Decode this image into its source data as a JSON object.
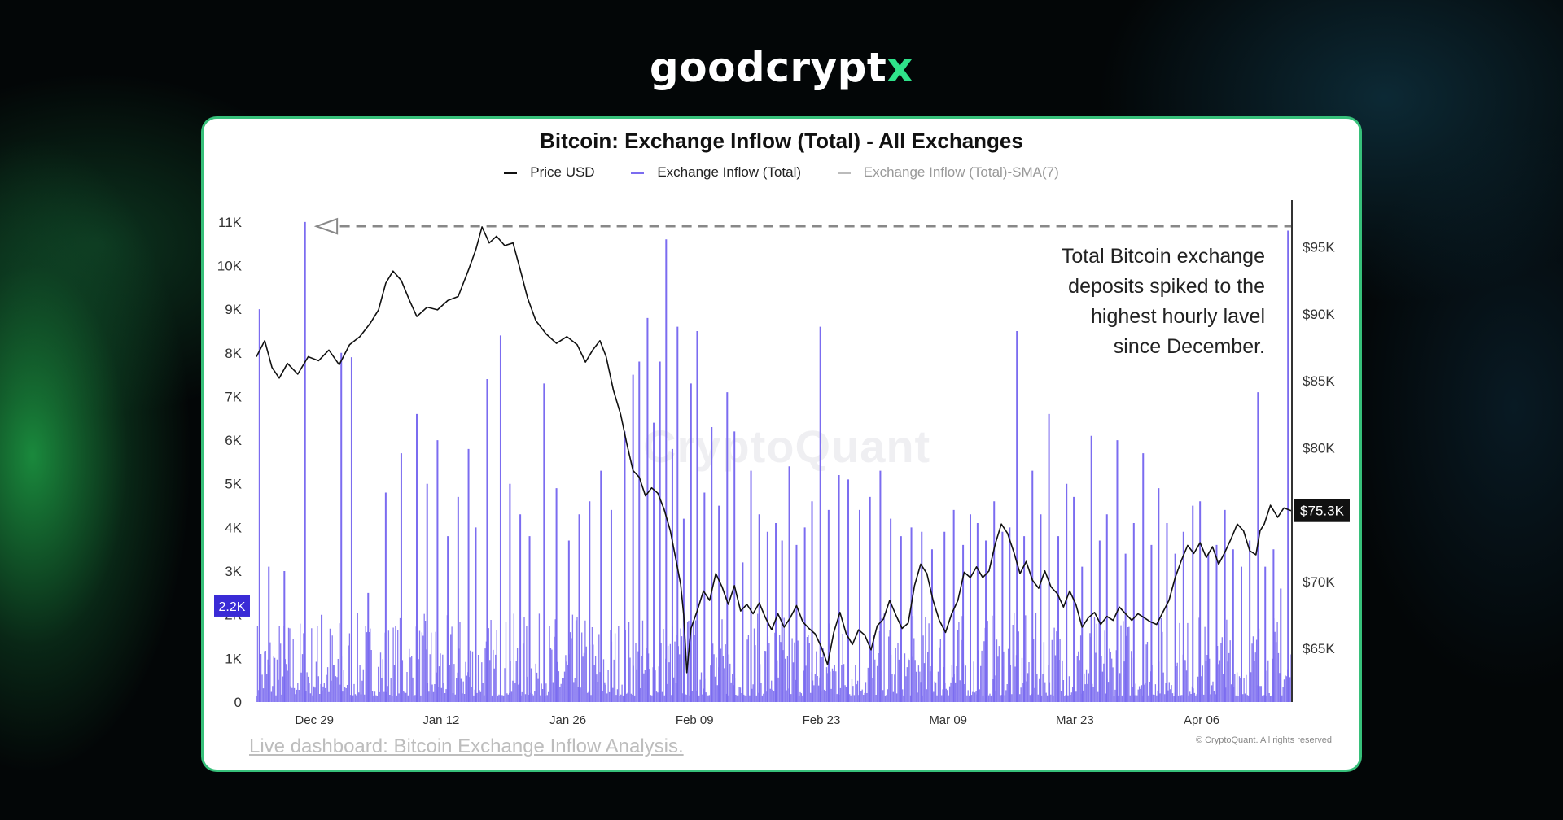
{
  "brand": {
    "logo_main": "goodcrypt",
    "logo_accent": "x"
  },
  "link": {
    "label": "Live dashboard: Bitcoin Exchange Inflow Analysis."
  },
  "footer": {
    "copyright": "© CryptoQuant. All rights reserved"
  },
  "watermark": "CryptoQuant",
  "colors": {
    "inflow": "#7b6cf0",
    "price": "#111111",
    "sma": "#aaaaaa",
    "card_border": "#37c07a",
    "badge_left": "#3a2bd6",
    "badge_right": "#111111"
  },
  "chart_data": {
    "type": "line",
    "title": "Bitcoin: Exchange Inflow (Total) - All Exchanges",
    "legend": [
      {
        "name": "Price USD",
        "color": "#111111",
        "active": true
      },
      {
        "name": "Exchange Inflow (Total)",
        "color": "#7b6cf0",
        "active": true
      },
      {
        "name": "Exchange Inflow (Total)-SMA(7)",
        "color": "#aaaaaa",
        "active": false
      }
    ],
    "legend_placement": "top-center",
    "y_left": {
      "ticks": [
        "0",
        "1K",
        "2K",
        "3K",
        "4K",
        "5K",
        "6K",
        "7K",
        "8K",
        "9K",
        "10K",
        "11K"
      ],
      "ylim": [
        0,
        11500
      ],
      "current_value_label": "2.2K",
      "current_value": 2200
    },
    "y_right": {
      "ticks": [
        "$65K",
        "$70K",
        "$75K",
        "$80K",
        "$85K",
        "$90K",
        "$95K"
      ],
      "tick_values": [
        65000,
        70000,
        75000,
        80000,
        85000,
        90000,
        95000
      ],
      "ylim": [
        61000,
        98500
      ],
      "current_value_label": "$75.3K",
      "current_value": 75300
    },
    "x_ticks": [
      "Dec 29",
      "Jan 12",
      "Jan 26",
      "Feb 09",
      "Feb 23",
      "Mar 09",
      "Mar 23",
      "Apr 06"
    ],
    "grid": false,
    "annotation": {
      "lines": [
        "Total Bitcoin exchange",
        "deposits spiked to the",
        "highest hourly lavel",
        "since December."
      ],
      "reference_level": 10900
    },
    "price_series": {
      "name": "Price USD",
      "points": [
        [
          0.0,
          86800
        ],
        [
          0.008,
          88000
        ],
        [
          0.015,
          86000
        ],
        [
          0.022,
          85200
        ],
        [
          0.03,
          86300
        ],
        [
          0.04,
          85500
        ],
        [
          0.05,
          86800
        ],
        [
          0.06,
          86500
        ],
        [
          0.07,
          87300
        ],
        [
          0.08,
          86200
        ],
        [
          0.09,
          87700
        ],
        [
          0.1,
          88300
        ],
        [
          0.11,
          89300
        ],
        [
          0.118,
          90300
        ],
        [
          0.125,
          92300
        ],
        [
          0.132,
          93200
        ],
        [
          0.14,
          92500
        ],
        [
          0.148,
          91000
        ],
        [
          0.155,
          89800
        ],
        [
          0.165,
          90500
        ],
        [
          0.175,
          90300
        ],
        [
          0.185,
          91000
        ],
        [
          0.195,
          91300
        ],
        [
          0.205,
          93300
        ],
        [
          0.212,
          94800
        ],
        [
          0.218,
          96500
        ],
        [
          0.225,
          95300
        ],
        [
          0.232,
          95800
        ],
        [
          0.24,
          95100
        ],
        [
          0.248,
          95300
        ],
        [
          0.256,
          93000
        ],
        [
          0.262,
          91200
        ],
        [
          0.27,
          89500
        ],
        [
          0.28,
          88500
        ],
        [
          0.29,
          87800
        ],
        [
          0.3,
          88300
        ],
        [
          0.31,
          87700
        ],
        [
          0.318,
          86400
        ],
        [
          0.325,
          87300
        ],
        [
          0.332,
          88000
        ],
        [
          0.338,
          86800
        ],
        [
          0.345,
          84300
        ],
        [
          0.352,
          82500
        ],
        [
          0.358,
          80300
        ],
        [
          0.364,
          78300
        ],
        [
          0.37,
          77800
        ],
        [
          0.376,
          76400
        ],
        [
          0.382,
          77000
        ],
        [
          0.388,
          76600
        ],
        [
          0.394,
          75400
        ],
        [
          0.4,
          73800
        ],
        [
          0.405,
          71800
        ],
        [
          0.41,
          69800
        ],
        [
          0.413,
          67500
        ],
        [
          0.416,
          63200
        ],
        [
          0.42,
          66500
        ],
        [
          0.426,
          67800
        ],
        [
          0.432,
          69300
        ],
        [
          0.438,
          68600
        ],
        [
          0.444,
          70600
        ],
        [
          0.45,
          69600
        ],
        [
          0.456,
          68300
        ],
        [
          0.462,
          69700
        ],
        [
          0.468,
          67800
        ],
        [
          0.474,
          68300
        ],
        [
          0.48,
          67600
        ],
        [
          0.486,
          68400
        ],
        [
          0.492,
          67300
        ],
        [
          0.498,
          66400
        ],
        [
          0.504,
          67600
        ],
        [
          0.51,
          66600
        ],
        [
          0.516,
          67300
        ],
        [
          0.522,
          68200
        ],
        [
          0.528,
          67000
        ],
        [
          0.534,
          66500
        ],
        [
          0.54,
          66100
        ],
        [
          0.546,
          65100
        ],
        [
          0.552,
          63800
        ],
        [
          0.558,
          66200
        ],
        [
          0.564,
          67700
        ],
        [
          0.57,
          66100
        ],
        [
          0.576,
          65300
        ],
        [
          0.582,
          66400
        ],
        [
          0.588,
          66000
        ],
        [
          0.594,
          64900
        ],
        [
          0.6,
          66700
        ],
        [
          0.606,
          67200
        ],
        [
          0.612,
          68600
        ],
        [
          0.618,
          67500
        ],
        [
          0.624,
          66500
        ],
        [
          0.63,
          66900
        ],
        [
          0.636,
          69700
        ],
        [
          0.642,
          71300
        ],
        [
          0.648,
          70600
        ],
        [
          0.654,
          68600
        ],
        [
          0.66,
          67100
        ],
        [
          0.666,
          66200
        ],
        [
          0.672,
          67600
        ],
        [
          0.678,
          68600
        ],
        [
          0.684,
          70700
        ],
        [
          0.69,
          70300
        ],
        [
          0.696,
          71100
        ],
        [
          0.702,
          70300
        ],
        [
          0.708,
          70800
        ],
        [
          0.714,
          72800
        ],
        [
          0.72,
          74300
        ],
        [
          0.726,
          73600
        ],
        [
          0.732,
          72200
        ],
        [
          0.738,
          70600
        ],
        [
          0.744,
          71500
        ],
        [
          0.75,
          70100
        ],
        [
          0.756,
          69500
        ],
        [
          0.762,
          70800
        ],
        [
          0.768,
          69600
        ],
        [
          0.774,
          69100
        ],
        [
          0.78,
          68100
        ],
        [
          0.786,
          69300
        ],
        [
          0.792,
          68300
        ],
        [
          0.798,
          66600
        ],
        [
          0.804,
          67300
        ],
        [
          0.81,
          67700
        ],
        [
          0.816,
          66800
        ],
        [
          0.822,
          67400
        ],
        [
          0.828,
          67100
        ],
        [
          0.834,
          68100
        ],
        [
          0.84,
          67600
        ],
        [
          0.846,
          67100
        ],
        [
          0.852,
          67600
        ],
        [
          0.858,
          67300
        ],
        [
          0.864,
          67000
        ],
        [
          0.87,
          66800
        ],
        [
          0.876,
          67700
        ],
        [
          0.882,
          68600
        ],
        [
          0.888,
          70300
        ],
        [
          0.894,
          71600
        ],
        [
          0.9,
          72700
        ],
        [
          0.906,
          72100
        ],
        [
          0.912,
          72900
        ],
        [
          0.918,
          71800
        ],
        [
          0.924,
          72600
        ],
        [
          0.93,
          71300
        ],
        [
          0.936,
          72200
        ],
        [
          0.942,
          73200
        ],
        [
          0.948,
          74300
        ],
        [
          0.954,
          73800
        ],
        [
          0.96,
          72300
        ],
        [
          0.966,
          72000
        ],
        [
          0.97,
          73800
        ],
        [
          0.974,
          74300
        ],
        [
          0.98,
          75700
        ],
        [
          0.987,
          74800
        ],
        [
          0.993,
          75500
        ],
        [
          1.0,
          75300
        ]
      ]
    },
    "inflow_spikes": {
      "name": "Exchange Inflow (Total)",
      "points": [
        [
          0.003,
          9000
        ],
        [
          0.012,
          3100
        ],
        [
          0.027,
          3000
        ],
        [
          0.047,
          11000
        ],
        [
          0.063,
          2000
        ],
        [
          0.082,
          8000
        ],
        [
          0.092,
          7900
        ],
        [
          0.108,
          2500
        ],
        [
          0.125,
          4800
        ],
        [
          0.14,
          5700
        ],
        [
          0.155,
          6600
        ],
        [
          0.165,
          5000
        ],
        [
          0.175,
          6000
        ],
        [
          0.185,
          3800
        ],
        [
          0.195,
          4700
        ],
        [
          0.205,
          5800
        ],
        [
          0.212,
          4000
        ],
        [
          0.223,
          7400
        ],
        [
          0.236,
          8400
        ],
        [
          0.245,
          5000
        ],
        [
          0.255,
          4300
        ],
        [
          0.264,
          3800
        ],
        [
          0.278,
          7300
        ],
        [
          0.29,
          4900
        ],
        [
          0.302,
          3700
        ],
        [
          0.312,
          4300
        ],
        [
          0.322,
          4600
        ],
        [
          0.333,
          5300
        ],
        [
          0.343,
          4400
        ],
        [
          0.356,
          6200
        ],
        [
          0.364,
          7500
        ],
        [
          0.37,
          7800
        ],
        [
          0.378,
          8800
        ],
        [
          0.384,
          6400
        ],
        [
          0.39,
          7800
        ],
        [
          0.396,
          10600
        ],
        [
          0.402,
          5800
        ],
        [
          0.407,
          8600
        ],
        [
          0.413,
          4200
        ],
        [
          0.42,
          7300
        ],
        [
          0.426,
          8500
        ],
        [
          0.433,
          4800
        ],
        [
          0.44,
          6300
        ],
        [
          0.447,
          4500
        ],
        [
          0.455,
          7100
        ],
        [
          0.462,
          6200
        ],
        [
          0.47,
          3200
        ],
        [
          0.478,
          5300
        ],
        [
          0.486,
          4300
        ],
        [
          0.494,
          3900
        ],
        [
          0.502,
          4100
        ],
        [
          0.508,
          3700
        ],
        [
          0.515,
          5400
        ],
        [
          0.522,
          3600
        ],
        [
          0.53,
          4000
        ],
        [
          0.537,
          4600
        ],
        [
          0.545,
          8600
        ],
        [
          0.553,
          4400
        ],
        [
          0.563,
          5200
        ],
        [
          0.572,
          5100
        ],
        [
          0.583,
          4400
        ],
        [
          0.593,
          4700
        ],
        [
          0.603,
          5300
        ],
        [
          0.613,
          4200
        ],
        [
          0.623,
          3800
        ],
        [
          0.633,
          4000
        ],
        [
          0.643,
          3900
        ],
        [
          0.653,
          3500
        ],
        [
          0.665,
          3900
        ],
        [
          0.674,
          4400
        ],
        [
          0.683,
          3600
        ],
        [
          0.69,
          4300
        ],
        [
          0.697,
          4100
        ],
        [
          0.705,
          3700
        ],
        [
          0.713,
          4600
        ],
        [
          0.721,
          3900
        ],
        [
          0.728,
          4000
        ],
        [
          0.735,
          8500
        ],
        [
          0.742,
          3800
        ],
        [
          0.75,
          5300
        ],
        [
          0.758,
          4300
        ],
        [
          0.766,
          6600
        ],
        [
          0.775,
          3800
        ],
        [
          0.783,
          5000
        ],
        [
          0.79,
          4700
        ],
        [
          0.798,
          3100
        ],
        [
          0.807,
          6100
        ],
        [
          0.815,
          3700
        ],
        [
          0.822,
          4300
        ],
        [
          0.832,
          6000
        ],
        [
          0.84,
          3400
        ],
        [
          0.848,
          4100
        ],
        [
          0.857,
          5700
        ],
        [
          0.865,
          3600
        ],
        [
          0.872,
          4900
        ],
        [
          0.88,
          4100
        ],
        [
          0.888,
          3400
        ],
        [
          0.896,
          3900
        ],
        [
          0.905,
          4500
        ],
        [
          0.912,
          4600
        ],
        [
          0.92,
          3400
        ],
        [
          0.928,
          3600
        ],
        [
          0.936,
          4400
        ],
        [
          0.944,
          3500
        ],
        [
          0.952,
          3100
        ],
        [
          0.96,
          3700
        ],
        [
          0.968,
          7100
        ],
        [
          0.975,
          3100
        ],
        [
          0.983,
          3500
        ],
        [
          0.99,
          2600
        ],
        [
          0.997,
          10800
        ]
      ]
    }
  }
}
